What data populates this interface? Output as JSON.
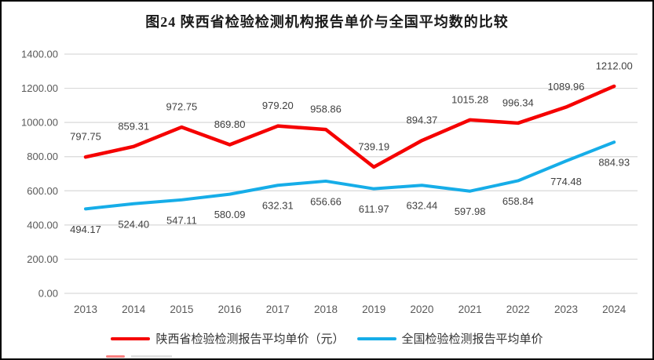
{
  "chart_data": {
    "type": "line",
    "title": "图24 陕西省检验检测机构报告单价与全国平均数的比较",
    "categories": [
      "2013",
      "2014",
      "2015",
      "2016",
      "2017",
      "2018",
      "2019",
      "2020",
      "2021",
      "2022",
      "2023",
      "2024"
    ],
    "series": [
      {
        "name": "陕西省检验检测报告平均单价（元）",
        "color": "#f50000",
        "stroke_width": 4.5,
        "data_labels": "above",
        "values": [
          797.75,
          859.31,
          972.75,
          869.8,
          979.2,
          958.86,
          739.19,
          894.37,
          1015.28,
          996.34,
          1089.96,
          1212.0
        ]
      },
      {
        "name": "全国检验检测报告平均单价",
        "color": "#16ade8",
        "stroke_width": 4,
        "data_labels": "below",
        "values": [
          494.17,
          524.4,
          547.11,
          580.09,
          632.31,
          656.66,
          611.97,
          632.44,
          597.98,
          658.84,
          774.48,
          884.93
        ]
      }
    ],
    "xlabel": "",
    "ylabel": "",
    "ylim": [
      0,
      1400
    ],
    "y_step": 200,
    "value_format_decimals": 2,
    "grid": true,
    "legend_position": "bottom",
    "colors": {
      "gridline": "#d9d9d9",
      "axis_text": "#595959",
      "data_label_text": "#404040",
      "title_text": "#1a1a1a",
      "background": "#ffffff",
      "frame_border": "#000000"
    }
  }
}
